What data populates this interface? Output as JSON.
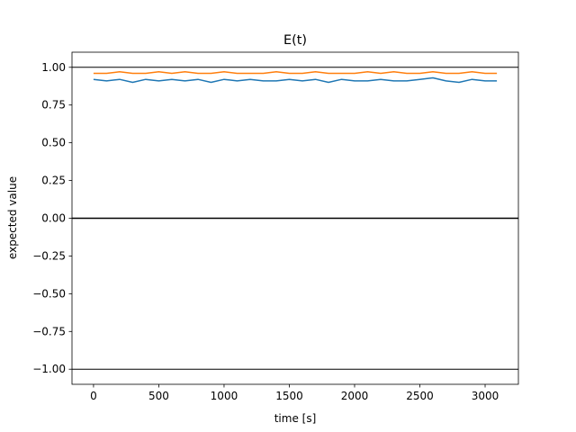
{
  "chart_data": {
    "type": "line",
    "title": "E(t)",
    "xlabel": "time [s]",
    "ylabel": "expected value",
    "xlim": [
      -165,
      3255
    ],
    "ylim": [
      -1.1,
      1.1
    ],
    "xticks": [
      0,
      500,
      1000,
      1500,
      2000,
      2500,
      3000
    ],
    "xtick_labels": [
      "0",
      "500",
      "1000",
      "1500",
      "2000",
      "2500",
      "3000"
    ],
    "yticks": [
      1.0,
      0.75,
      0.5,
      0.25,
      0.0,
      -0.25,
      -0.5,
      -0.75,
      -1.0
    ],
    "ytick_labels": [
      "1.00",
      "0.75",
      "0.50",
      "0.25",
      "0.00",
      "−0.25",
      "−0.50",
      "−0.75",
      "−1.00"
    ],
    "reference_lines": [
      1.0,
      0.0,
      -1.0
    ],
    "grid": false,
    "series": [
      {
        "color": "#1f77b4",
        "x": [
          0,
          100,
          200,
          300,
          400,
          500,
          600,
          700,
          800,
          900,
          1000,
          1100,
          1200,
          1300,
          1400,
          1500,
          1600,
          1700,
          1800,
          1900,
          2000,
          2100,
          2200,
          2300,
          2400,
          2500,
          2600,
          2700,
          2800,
          2900,
          3000,
          3090
        ],
        "y": [
          0.92,
          0.91,
          0.92,
          0.9,
          0.92,
          0.91,
          0.92,
          0.91,
          0.92,
          0.9,
          0.92,
          0.91,
          0.92,
          0.91,
          0.91,
          0.92,
          0.91,
          0.92,
          0.9,
          0.92,
          0.91,
          0.91,
          0.92,
          0.91,
          0.91,
          0.92,
          0.93,
          0.91,
          0.9,
          0.92,
          0.91,
          0.91
        ]
      },
      {
        "color": "#ff7f0e",
        "x": [
          0,
          100,
          200,
          300,
          400,
          500,
          600,
          700,
          800,
          900,
          1000,
          1100,
          1200,
          1300,
          1400,
          1500,
          1600,
          1700,
          1800,
          1900,
          2000,
          2100,
          2200,
          2300,
          2400,
          2500,
          2600,
          2700,
          2800,
          2900,
          3000,
          3090
        ],
        "y": [
          0.96,
          0.96,
          0.97,
          0.96,
          0.96,
          0.97,
          0.96,
          0.97,
          0.96,
          0.96,
          0.97,
          0.96,
          0.96,
          0.96,
          0.97,
          0.96,
          0.96,
          0.97,
          0.96,
          0.96,
          0.96,
          0.97,
          0.96,
          0.97,
          0.96,
          0.96,
          0.97,
          0.96,
          0.96,
          0.97,
          0.96,
          0.96
        ]
      }
    ]
  }
}
